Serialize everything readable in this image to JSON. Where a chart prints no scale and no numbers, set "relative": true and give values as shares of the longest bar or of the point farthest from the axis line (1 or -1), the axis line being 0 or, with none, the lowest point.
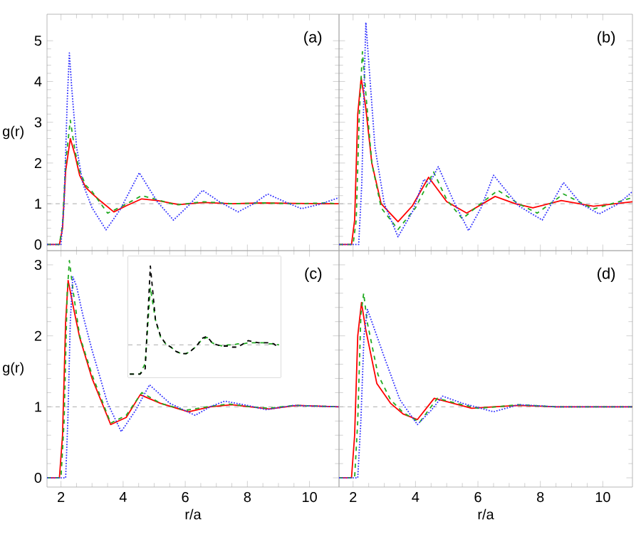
{
  "chart_data": [
    {
      "type": "line",
      "xlim": [
        1.55,
        10.95
      ],
      "ylim": [
        -0.15,
        5.65
      ],
      "xticks": [
        2,
        4,
        6,
        8,
        10
      ],
      "yticks": [
        0,
        1,
        2,
        3,
        4,
        5
      ],
      "ylabel": "g(r)",
      "tick_labels": "y",
      "annotations": [
        "(a)"
      ],
      "ref_lines": [
        {
          "axis": "y",
          "value": 1,
          "color": "#bbbbbb",
          "line_style": "dashed"
        }
      ],
      "series": [
        {
          "color": "#ff0000",
          "line_style": "solid",
          "x": [
            1.55,
            1.95,
            2.05,
            2.15,
            2.3,
            2.45,
            2.6,
            2.8,
            3.0,
            3.3,
            3.7,
            4.1,
            4.6,
            5.1,
            5.8,
            6.6,
            7.5,
            8.5,
            9.5,
            10.5,
            10.95
          ],
          "values": [
            0,
            0,
            0.4,
            1.8,
            2.6,
            2.2,
            1.7,
            1.4,
            1.25,
            1.05,
            0.8,
            0.95,
            1.12,
            1.08,
            0.98,
            1.03,
            1.0,
            1.02,
            1.01,
            1.0,
            1.0
          ]
        },
        {
          "color": "#22aa22",
          "line_style": "dashed",
          "x": [
            1.55,
            1.95,
            2.05,
            2.15,
            2.3,
            2.45,
            2.6,
            2.8,
            3.0,
            3.5,
            4.0,
            4.6,
            5.1,
            5.7,
            6.6,
            7.5,
            8.5,
            9.5,
            10.5,
            10.95
          ],
          "values": [
            0,
            0,
            0.5,
            2.0,
            3.05,
            2.3,
            1.8,
            1.45,
            1.3,
            0.77,
            0.95,
            1.2,
            1.1,
            0.97,
            1.05,
            1.0,
            1.02,
            1.0,
            1.02,
            1.0
          ]
        },
        {
          "color": "#3333ff",
          "line_style": "dotted",
          "x": [
            1.55,
            2.0,
            2.1,
            2.2,
            2.27,
            2.35,
            2.5,
            2.7,
            3.0,
            3.45,
            3.9,
            4.52,
            5.1,
            5.62,
            6.1,
            6.56,
            7.1,
            7.7,
            8.2,
            8.65,
            9.2,
            9.74,
            10.3,
            10.95
          ],
          "values": [
            0,
            0,
            1.0,
            3.5,
            4.7,
            3.8,
            2.4,
            1.5,
            0.9,
            0.36,
            0.85,
            1.76,
            1.05,
            0.6,
            0.95,
            1.33,
            1.05,
            0.8,
            1.0,
            1.24,
            1.05,
            0.88,
            0.98,
            1.15
          ]
        }
      ]
    },
    {
      "type": "line",
      "xlim": [
        1.55,
        10.95
      ],
      "ylim": [
        -0.15,
        5.65
      ],
      "xticks": [
        2,
        4,
        6,
        8,
        10
      ],
      "yticks": [
        0,
        1,
        2,
        3,
        4,
        5
      ],
      "tick_labels": false,
      "annotations": [
        "(b)"
      ],
      "ref_lines": [
        {
          "axis": "y",
          "value": 1,
          "color": "#bbbbbb",
          "line_style": "dashed"
        }
      ],
      "series": [
        {
          "color": "#ff0000",
          "line_style": "solid",
          "x": [
            1.55,
            1.95,
            2.05,
            2.15,
            2.26,
            2.4,
            2.6,
            2.9,
            3.44,
            3.9,
            4.42,
            5.0,
            5.64,
            6.55,
            7.2,
            7.76,
            8.67,
            9.7,
            10.95
          ],
          "values": [
            0,
            0,
            0.6,
            3.2,
            4.09,
            3.4,
            2.0,
            1.0,
            0.56,
            0.95,
            1.65,
            1.05,
            0.77,
            1.18,
            1.0,
            0.9,
            1.08,
            0.94,
            1.05
          ]
        },
        {
          "color": "#22aa22",
          "line_style": "dashed",
          "x": [
            1.55,
            2.0,
            2.1,
            2.2,
            2.3,
            2.42,
            2.6,
            2.9,
            3.44,
            4.0,
            4.58,
            5.0,
            5.5,
            6.0,
            6.64,
            7.3,
            7.9,
            8.74,
            9.7,
            10.95
          ],
          "values": [
            0,
            0,
            0.6,
            3.2,
            4.73,
            3.6,
            2.0,
            0.9,
            0.37,
            0.9,
            1.78,
            1.1,
            0.63,
            0.95,
            1.33,
            1.0,
            0.77,
            1.24,
            0.87,
            1.15
          ]
        },
        {
          "color": "#3333ff",
          "line_style": "dotted",
          "x": [
            1.55,
            2.18,
            2.28,
            2.35,
            2.41,
            2.5,
            2.7,
            3.0,
            3.44,
            3.9,
            4.27,
            4.45,
            4.73,
            5.2,
            5.7,
            6.1,
            6.5,
            7.3,
            8.06,
            8.74,
            9.3,
            9.88,
            10.5,
            10.95
          ],
          "values": [
            0,
            0,
            1.5,
            3.8,
            5.45,
            4.5,
            2.4,
            1.0,
            0.19,
            0.8,
            1.6,
            1.5,
            1.91,
            1.1,
            0.34,
            0.9,
            1.7,
            0.95,
            0.6,
            1.52,
            1.0,
            0.75,
            1.0,
            1.3
          ]
        }
      ]
    },
    {
      "type": "line",
      "xlim": [
        1.55,
        10.95
      ],
      "ylim": [
        -0.13,
        3.2
      ],
      "xticks": [
        2,
        4,
        6,
        8,
        10
      ],
      "yticks": [
        0,
        1,
        2,
        3
      ],
      "xlabel": "r/a",
      "ylabel": "g(r)",
      "annotations": [
        "(c)"
      ],
      "ref_lines": [
        {
          "axis": "y",
          "value": 1,
          "color": "#bbbbbb",
          "line_style": "dashed"
        }
      ],
      "series": [
        {
          "color": "#ff0000",
          "line_style": "solid",
          "x": [
            1.55,
            1.95,
            2.05,
            2.15,
            2.23,
            2.4,
            2.6,
            3.0,
            3.6,
            4.1,
            4.55,
            5.2,
            6.1,
            6.8,
            7.5,
            8.1,
            8.7,
            9.6,
            10.95
          ],
          "values": [
            0,
            0,
            0.6,
            2.2,
            2.78,
            2.4,
            1.98,
            1.4,
            0.75,
            0.85,
            1.17,
            1.05,
            0.93,
            1.0,
            1.03,
            1.0,
            0.97,
            1.02,
            1.0
          ]
        },
        {
          "color": "#22aa22",
          "line_style": "dashed",
          "x": [
            1.55,
            2.0,
            2.1,
            2.2,
            2.27,
            2.4,
            2.6,
            3.0,
            3.6,
            4.1,
            4.6,
            5.2,
            6.0,
            6.7,
            7.4,
            8.1,
            8.7,
            9.5,
            10.95
          ],
          "values": [
            0,
            0,
            0.8,
            2.6,
            3.06,
            2.6,
            2.0,
            1.45,
            0.77,
            0.88,
            1.2,
            1.05,
            0.95,
            1.0,
            1.04,
            1.0,
            0.98,
            1.02,
            1.0
          ]
        },
        {
          "color": "#3333ff",
          "line_style": "dotted",
          "x": [
            1.55,
            2.15,
            2.22,
            2.3,
            2.38,
            2.5,
            2.7,
            3.0,
            3.5,
            3.94,
            4.4,
            4.85,
            5.5,
            6.32,
            6.8,
            7.27,
            8.0,
            8.6,
            9.5,
            10.95
          ],
          "values": [
            0,
            0,
            0.8,
            2.2,
            2.83,
            2.7,
            2.3,
            1.8,
            1.05,
            0.65,
            0.95,
            1.31,
            1.05,
            0.88,
            1.0,
            1.08,
            1.02,
            0.96,
            1.02,
            1.0
          ]
        }
      ]
    },
    {
      "type": "line",
      "relative": true,
      "categories": [
        null,
        null,
        null,
        null,
        null,
        null,
        null,
        null,
        null,
        null,
        null,
        null,
        null,
        null,
        null,
        null,
        null,
        null,
        null,
        null,
        null,
        null,
        null,
        null,
        null,
        null,
        null,
        null,
        null,
        null
      ],
      "ref_lines": [
        {
          "axis": "y",
          "value": 0.27,
          "color": "#bbbbbb",
          "line_style": "dashed"
        }
      ],
      "series": [
        {
          "color": "#22aa22",
          "line_style": "dashed",
          "values": [
            0,
            0,
            0,
            0.1,
            0.8,
            0.5,
            0.34,
            0.28,
            0.25,
            0.21,
            0.19,
            0.19,
            0.22,
            0.26,
            0.32,
            0.34,
            0.29,
            0.27,
            0.26,
            0.27,
            0.27,
            0.28,
            0.28,
            0.29,
            0.29,
            0.29,
            0.29,
            0.28,
            0.28,
            0.27
          ]
        },
        {
          "color": "#000000",
          "line_style": "dashed",
          "values": [
            0,
            0,
            0,
            0.05,
            1.0,
            0.5,
            0.35,
            0.28,
            0.25,
            0.21,
            0.19,
            0.19,
            0.22,
            0.26,
            0.33,
            0.35,
            0.29,
            0.27,
            0.26,
            0.26,
            0.25,
            0.25,
            0.28,
            0.31,
            0.3,
            0.29,
            0.29,
            0.29,
            0.28,
            0.24
          ]
        }
      ]
    },
    {
      "type": "line",
      "xlim": [
        1.55,
        10.95
      ],
      "ylim": [
        -0.13,
        3.2
      ],
      "xticks": [
        2,
        4,
        6,
        8,
        10
      ],
      "yticks": [
        0,
        1,
        2,
        3
      ],
      "xlabel": "r/a",
      "tick_labels": "x",
      "annotations": [
        "(d)"
      ],
      "ref_lines": [
        {
          "axis": "y",
          "value": 1,
          "color": "#bbbbbb",
          "line_style": "dashed"
        }
      ],
      "series": [
        {
          "color": "#ff0000",
          "line_style": "solid",
          "x": [
            1.55,
            1.95,
            2.05,
            2.15,
            2.27,
            2.4,
            2.76,
            3.2,
            3.6,
            4.06,
            4.6,
            5.2,
            5.8,
            6.5,
            7.3,
            8.5,
            10.95
          ],
          "values": [
            0,
            0,
            0.6,
            2.0,
            2.47,
            2.1,
            1.33,
            1.05,
            0.9,
            0.82,
            1.12,
            1.05,
            0.98,
            1.0,
            1.02,
            1.0,
            1.0
          ]
        },
        {
          "color": "#22aa22",
          "line_style": "dashed",
          "x": [
            1.55,
            2.05,
            2.15,
            2.25,
            2.34,
            2.45,
            2.8,
            3.2,
            3.6,
            4.13,
            4.7,
            5.3,
            6.0,
            6.6,
            7.3,
            8.5,
            10.95
          ],
          "values": [
            0,
            0,
            0.8,
            2.3,
            2.6,
            2.2,
            1.45,
            1.1,
            0.92,
            0.78,
            1.12,
            1.05,
            0.98,
            1.0,
            1.03,
            1.0,
            1.0
          ]
        },
        {
          "color": "#3333ff",
          "line_style": "dotted",
          "x": [
            1.55,
            2.15,
            2.25,
            2.35,
            2.46,
            2.6,
            3.0,
            3.5,
            4.06,
            4.5,
            4.87,
            5.5,
            6.5,
            7.3,
            8.5,
            10.95
          ],
          "values": [
            0,
            0,
            0.8,
            2.0,
            2.37,
            2.2,
            1.7,
            1.1,
            0.75,
            0.95,
            1.15,
            1.05,
            0.93,
            1.03,
            1.0,
            1.0
          ]
        }
      ]
    }
  ]
}
